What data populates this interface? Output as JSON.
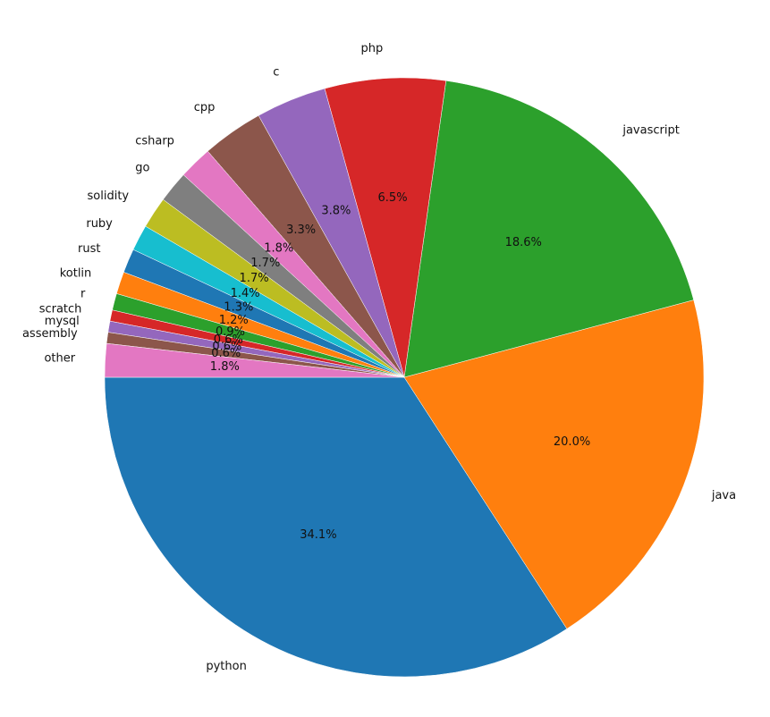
{
  "chart_data": {
    "type": "pie",
    "title": "",
    "start_angle_deg": 180,
    "direction": "counterclockwise",
    "slices": [
      {
        "label": "python",
        "value": 34.1,
        "pct_label": "34.1%",
        "color": "#1f77b4"
      },
      {
        "label": "java",
        "value": 20.0,
        "pct_label": "20.0%",
        "color": "#ff7f0e"
      },
      {
        "label": "javascript",
        "value": 18.6,
        "pct_label": "18.6%",
        "color": "#2ca02c"
      },
      {
        "label": "php",
        "value": 6.5,
        "pct_label": "6.5%",
        "color": "#d62728"
      },
      {
        "label": "c",
        "value": 3.8,
        "pct_label": "3.8%",
        "color": "#9467bd"
      },
      {
        "label": "cpp",
        "value": 3.3,
        "pct_label": "3.3%",
        "color": "#8c564b"
      },
      {
        "label": "csharp",
        "value": 1.8,
        "pct_label": "1.8%",
        "color": "#e377c2"
      },
      {
        "label": "go",
        "value": 1.7,
        "pct_label": "1.7%",
        "color": "#7f7f7f"
      },
      {
        "label": "solidity",
        "value": 1.7,
        "pct_label": "1.7%",
        "color": "#bcbd22"
      },
      {
        "label": "ruby",
        "value": 1.4,
        "pct_label": "1.4%",
        "color": "#17becf"
      },
      {
        "label": "rust",
        "value": 1.3,
        "pct_label": "1.3%",
        "color": "#1f77b4"
      },
      {
        "label": "kotlin",
        "value": 1.2,
        "pct_label": "1.2%",
        "color": "#ff7f0e"
      },
      {
        "label": "r",
        "value": 0.9,
        "pct_label": "0.9%",
        "color": "#2ca02c"
      },
      {
        "label": "scratch",
        "value": 0.6,
        "pct_label": "0.6%",
        "color": "#d62728"
      },
      {
        "label": "mysql",
        "value": 0.6,
        "pct_label": "0.6%",
        "color": "#9467bd"
      },
      {
        "label": "assembly",
        "value": 0.6,
        "pct_label": "0.6%",
        "color": "#8c564b"
      },
      {
        "label": "other",
        "value": 1.8,
        "pct_label": "1.8%",
        "color": "#e377c2"
      }
    ]
  }
}
